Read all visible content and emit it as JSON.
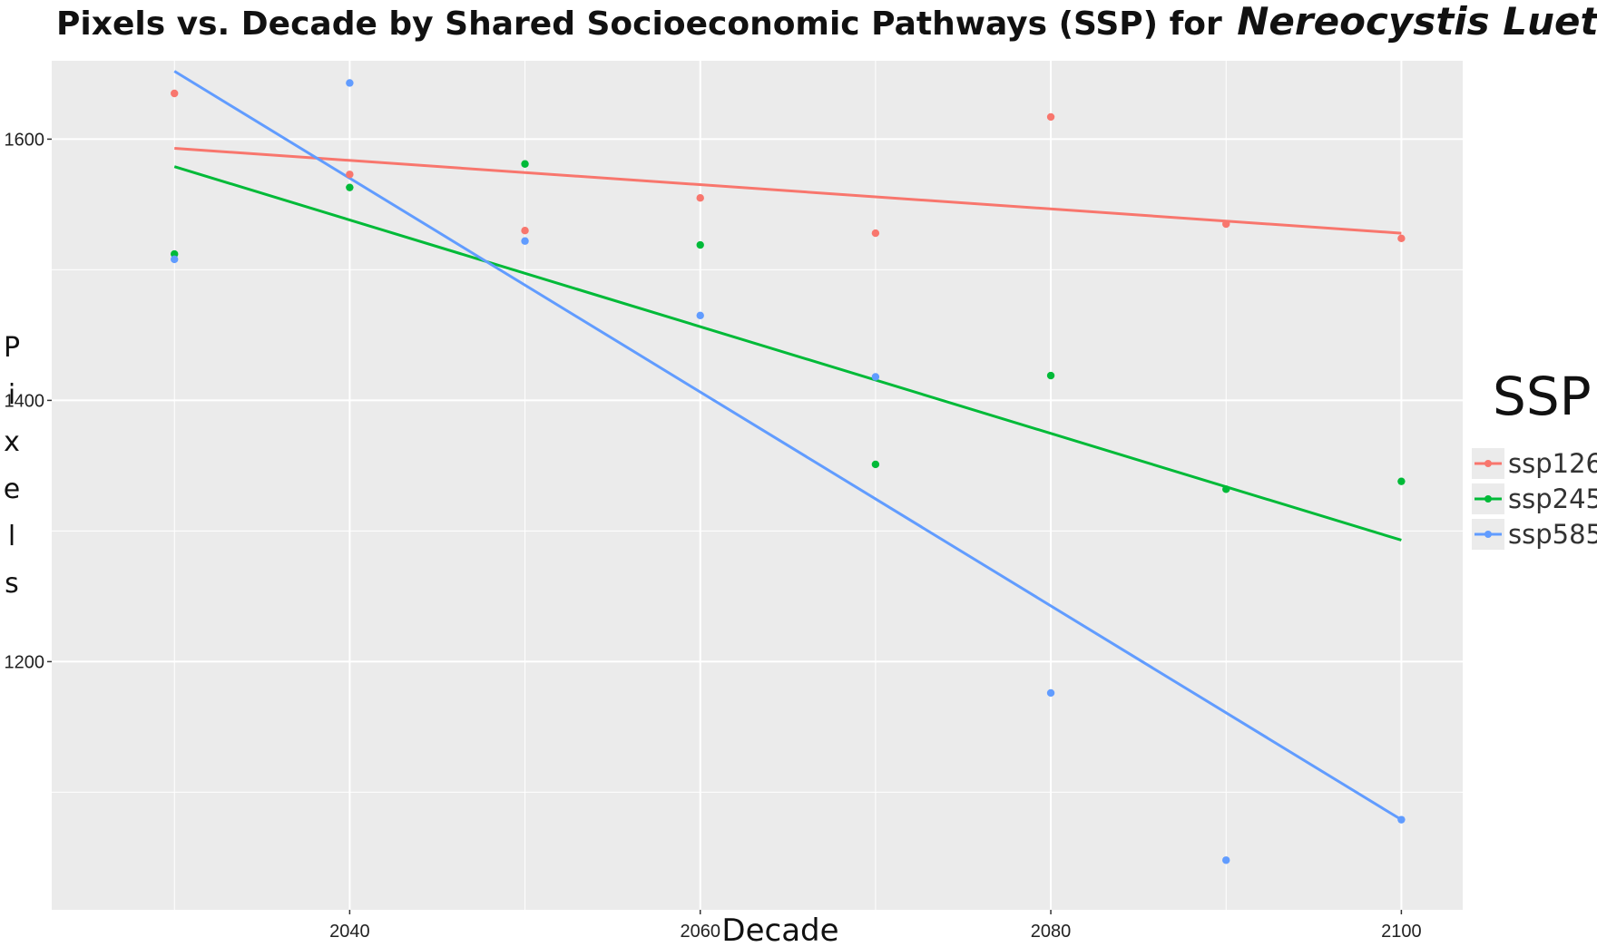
{
  "chart_data": {
    "type": "scatter",
    "title": "Pixels vs. Decade by Shared Socioeconomic Pathways (SSP) for",
    "title_species": "Nereocystis Luetkeana",
    "xlabel": "Decade",
    "ylabel": "Pixels",
    "xlim": [
      2023,
      2103.5
    ],
    "ylim": [
      1010,
      1660
    ],
    "x_ticks": [
      2040,
      2060,
      2080,
      2100
    ],
    "y_ticks": [
      1200,
      1400,
      1600
    ],
    "grid": true,
    "background": "#EBEBEB",
    "legend": {
      "title": "SSP",
      "position": "right"
    },
    "fit": "linear",
    "series": [
      {
        "name": "ssp126",
        "color": "#F8766D",
        "x": [
          2030,
          2040,
          2050,
          2060,
          2070,
          2080,
          2090,
          2100
        ],
        "y": [
          1635,
          1573,
          1530,
          1555,
          1528,
          1617,
          1535,
          1524
        ],
        "trend": [
          [
            2030,
            1593
          ],
          [
            2100,
            1528
          ]
        ]
      },
      {
        "name": "ssp245",
        "color": "#00BA38",
        "x": [
          2030,
          2040,
          2050,
          2060,
          2070,
          2080,
          2090,
          2100
        ],
        "y": [
          1512,
          1563,
          1581,
          1519,
          1351,
          1419,
          1332,
          1338
        ],
        "trend": [
          [
            2030,
            1579
          ],
          [
            2100,
            1293
          ]
        ]
      },
      {
        "name": "ssp585",
        "color": "#619CFF",
        "x": [
          2030,
          2040,
          2050,
          2060,
          2070,
          2080,
          2090,
          2100
        ],
        "y": [
          1508,
          1643,
          1522,
          1465,
          1418,
          1176,
          1048,
          1079
        ],
        "trend": [
          [
            2030,
            1652
          ],
          [
            2100,
            1079
          ]
        ]
      }
    ]
  }
}
